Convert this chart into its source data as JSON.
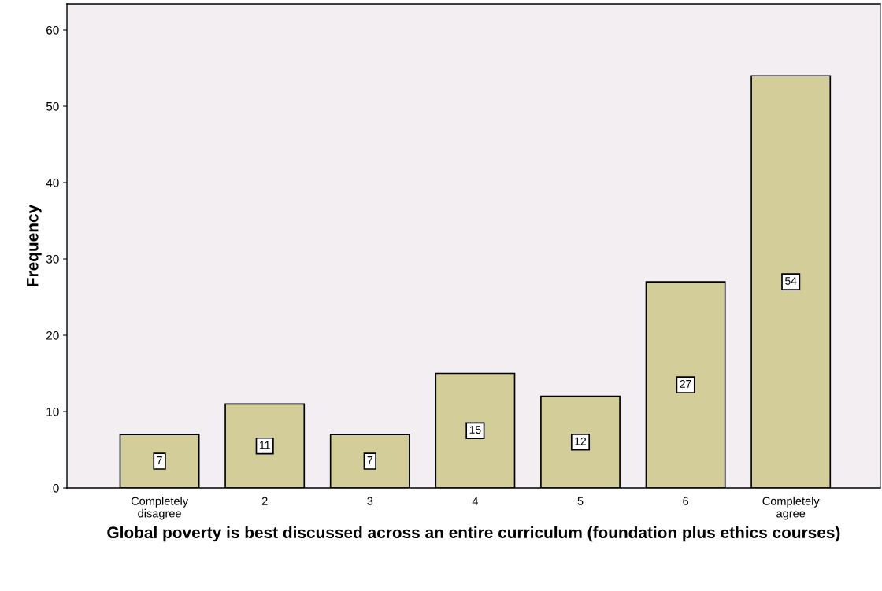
{
  "chart_data": {
    "type": "bar",
    "xlabel": "Global poverty is best discussed across an entire curriculum (foundation plus ethics courses)",
    "ylabel": "Frequency",
    "categories": [
      "Completely\ndisagree",
      "2",
      "3",
      "4",
      "5",
      "6",
      "Completely\nagree"
    ],
    "values": [
      7,
      11,
      7,
      15,
      12,
      27,
      54
    ],
    "color": "#d3ce99",
    "ylim": [
      0,
      63.4
    ],
    "yticks": [
      0,
      10,
      20,
      30,
      40,
      50,
      60
    ],
    "data_labels": true,
    "grid": false
  }
}
